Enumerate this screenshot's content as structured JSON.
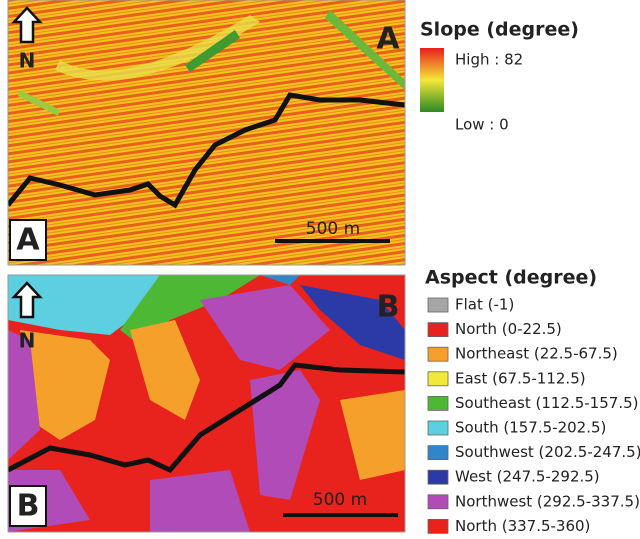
{
  "panel_a": {
    "label": "A",
    "corner_label": "A",
    "north": "N",
    "scale": "500 m"
  },
  "slope_legend": {
    "title": "Slope (degree)",
    "high": "High : 82",
    "low": "Low : 0"
  },
  "panel_b": {
    "label": "B",
    "corner_label": "B",
    "north": "N",
    "scale": "500 m"
  },
  "aspect_legend": {
    "title": "Aspect (degree)",
    "items": [
      {
        "label": "Flat (-1)",
        "color": "#a6a6a6"
      },
      {
        "label": "North (0-22.5)",
        "color": "#e8221c"
      },
      {
        "label": "Northeast (22.5-67.5)",
        "color": "#f5a02a"
      },
      {
        "label": "East (67.5-112.5)",
        "color": "#f2e83a"
      },
      {
        "label": "Southeast (112.5-157.5)",
        "color": "#4cb833"
      },
      {
        "label": "South (157.5-202.5)",
        "color": "#5ccfe0"
      },
      {
        "label": "Southwest (202.5-247.5)",
        "color": "#2f86c9"
      },
      {
        "label": "West (247.5-292.5)",
        "color": "#2b3aa6"
      },
      {
        "label": "Northwest (292.5-337.5)",
        "color": "#b04bb8"
      },
      {
        "label": "North (337.5-360)",
        "color": "#e8221c"
      }
    ]
  }
}
